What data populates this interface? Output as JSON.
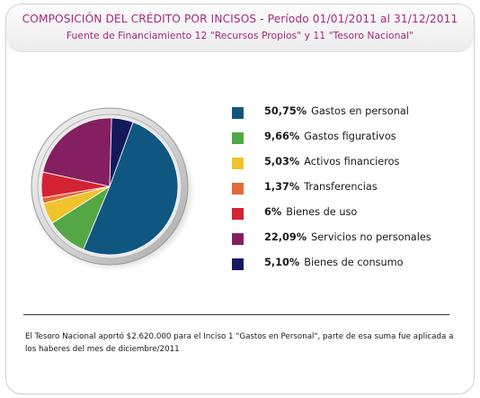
{
  "header": {
    "title": "COMPOSICIÓN DEL CRÉDITO POR INCISOS - Período 01/01/2011 al 31/12/2011",
    "subtitle": "Fuente de Financiamiento 12 \"Recursos Propios\" y 11 \"Tesoro Nacional\""
  },
  "chart_data": {
    "type": "pie",
    "slices": [
      {
        "label": "Gastos en personal",
        "percent_label": "50,75%",
        "value": 50.75,
        "color": "#0f5781"
      },
      {
        "label": "Gastos figurativos",
        "percent_label": "9,66%",
        "value": 9.66,
        "color": "#54a745"
      },
      {
        "label": "Activos financieros",
        "percent_label": "5,03%",
        "value": 5.03,
        "color": "#efc32c"
      },
      {
        "label": "Transferencias",
        "percent_label": "1,37%",
        "value": 1.37,
        "color": "#e4683b"
      },
      {
        "label": "Bienes de uso",
        "percent_label": "6%",
        "value": 6.0,
        "color": "#d42233"
      },
      {
        "label": "Servicios no personales",
        "percent_label": "22,09%",
        "value": 22.09,
        "color": "#861f62"
      },
      {
        "label": "Bienes de consumo",
        "percent_label": "5,10%",
        "value": 5.1,
        "color": "#131a5c"
      }
    ],
    "legend_position": "right"
  },
  "footer": {
    "note": "El Tesoro Nacional aportó $2.620.000 para el Inciso 1 \"Gastos en Personal\", parte de esa suma fue aplicada a los haberes del mes de diciembre/2011"
  }
}
